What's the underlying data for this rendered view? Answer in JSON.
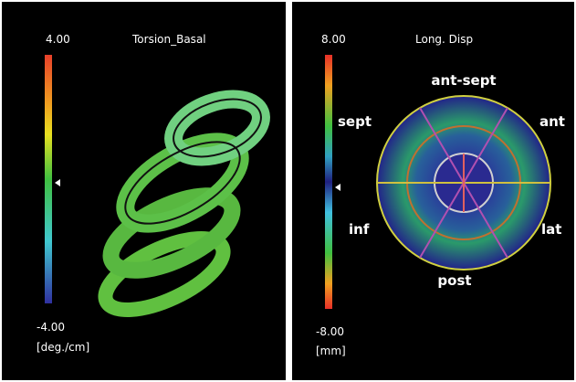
{
  "left_panel": {
    "title": "Torsion_Basal",
    "scale_max": "4.00",
    "scale_min": "-4.00",
    "unit": "[deg./cm]"
  },
  "right_panel": {
    "title": "Long. Disp",
    "scale_max": "8.00",
    "scale_min": "-8.00",
    "unit": "[mm]",
    "segments": {
      "top": "ant-sept",
      "upper_left": "sept",
      "upper_right": "ant",
      "lower_left": "inf",
      "lower_right": "lat",
      "bottom": "post"
    }
  }
}
